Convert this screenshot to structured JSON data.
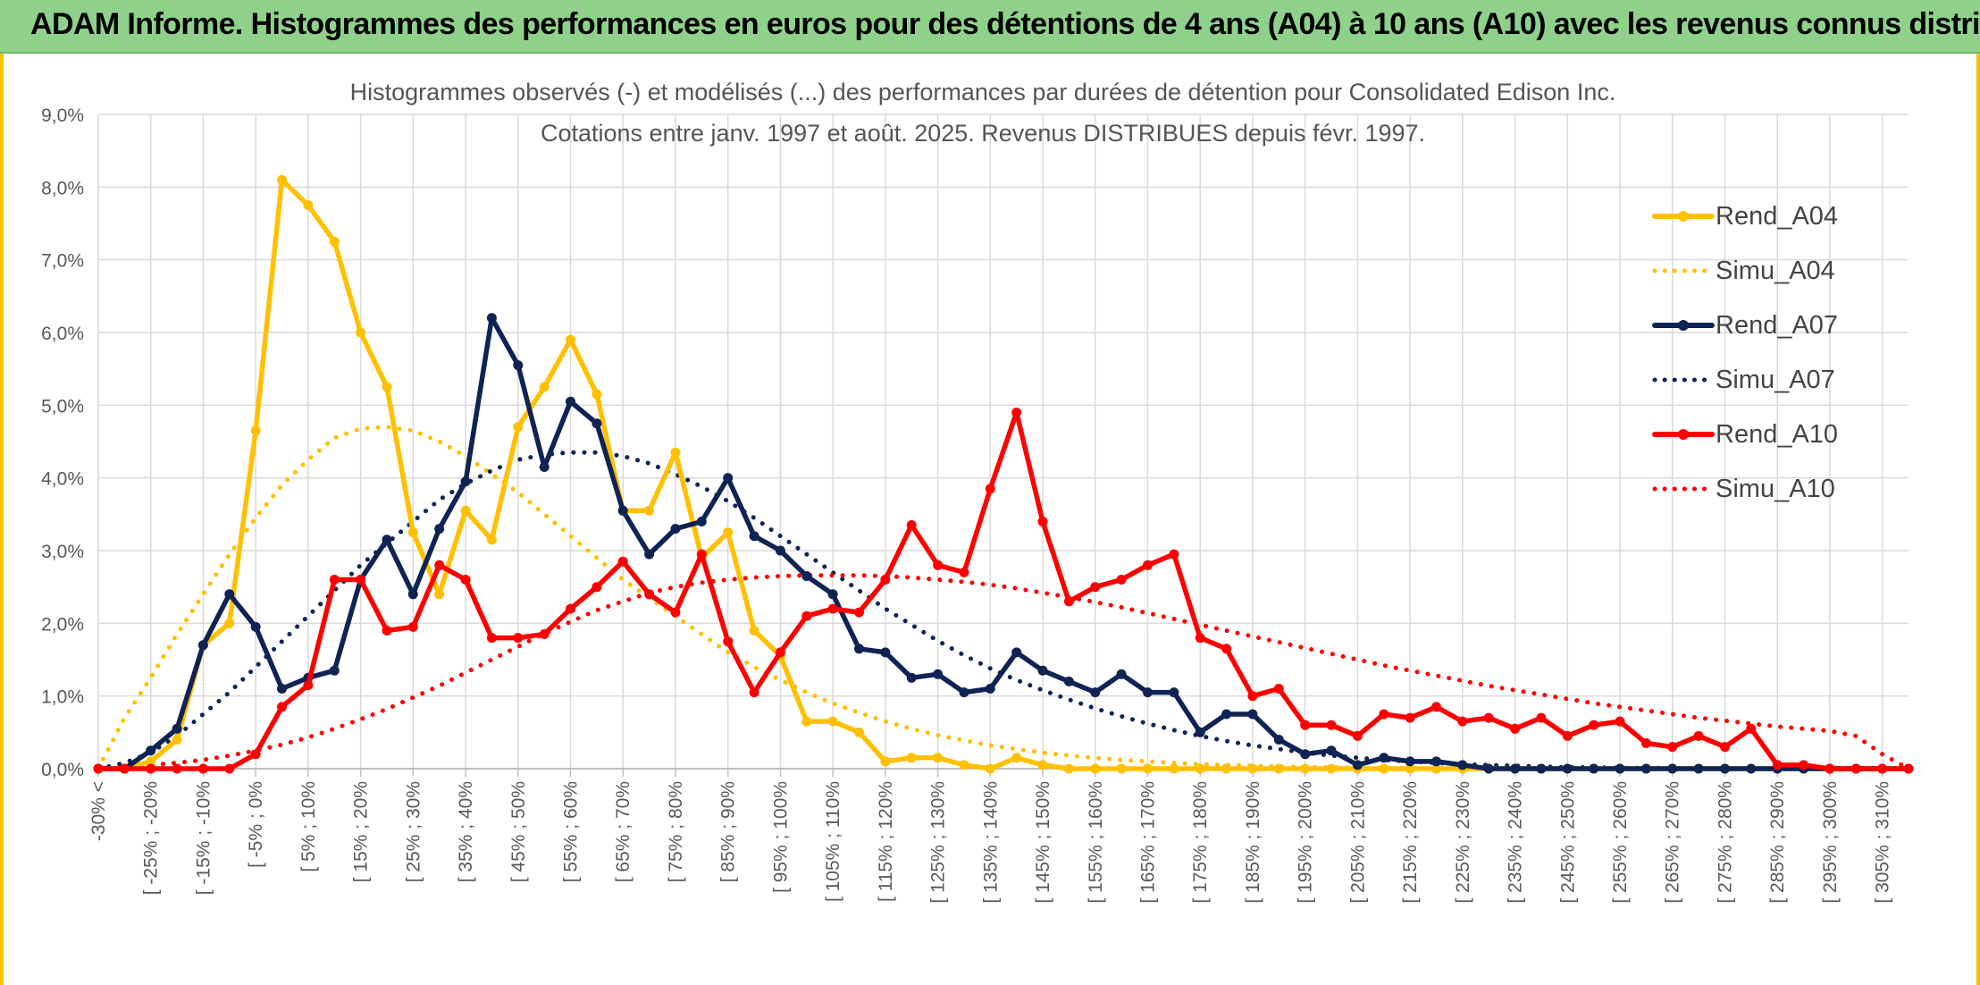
{
  "banner": {
    "title": "ADAM Informe. Histogrammes des performances en euros pour des détentions de 4 ans (A04) à 10 ans (A10) avec les revenus connus distribués"
  },
  "chart_data": {
    "type": "line",
    "title": "Histogrammes observés (-) et modélisés (...) des performances par durées de détention pour Consolidated Edison Inc.",
    "subtitle": "Cotations entre janv. 1997 et août. 2025. Revenus DISTRIBUES depuis févr. 1997.",
    "xlabel": "",
    "ylabel": "",
    "ylim": [
      0,
      9
    ],
    "y_ticks": [
      "0,0%",
      "1,0%",
      "2,0%",
      "3,0%",
      "4,0%",
      "5,0%",
      "6,0%",
      "7,0%",
      "8,0%",
      "9,0%"
    ],
    "grid": true,
    "legend_position": "right",
    "x_tick_labels": [
      "-30% <",
      "[ -25% ; -20%",
      "[ -15% ; -10%",
      "[ -5% ; 0%",
      "[ 5% ; 10%",
      "[ 15% ; 20%",
      "[ 25% ; 30%",
      "[ 35% ; 40%",
      "[ 45% ; 50%",
      "[ 55% ; 60%",
      "[ 65% ; 70%",
      "[ 75% ; 80%",
      "[ 85% ; 90%",
      "[ 95% ; 100%",
      "[ 105% ; 110%",
      "[ 115% ; 120%",
      "[ 125% ; 130%",
      "[ 135% ; 140%",
      "[ 145% ; 150%",
      "[ 155% ; 160%",
      "[ 165% ; 170%",
      "[ 175% ; 180%",
      "[ 185% ; 190%",
      "[ 195% ; 200%",
      "[ 205% ; 210%",
      "[ 215% ; 220%",
      "[ 225% ; 230%",
      "[ 235% ; 240%",
      "[ 245% ; 250%",
      "[ 255% ; 260%",
      "[ 265% ; 270%",
      "[ 275% ; 280%",
      "[ 285% ; 290%",
      "[ 295% ; 300%",
      "[ 305% ; 310%"
    ],
    "series": [
      {
        "name": "Rend_A04",
        "color": "#ffc000",
        "style": "solid",
        "markers": true,
        "values": [
          0.0,
          0.0,
          0.1,
          0.4,
          1.7,
          2.0,
          4.65,
          8.1,
          7.75,
          7.25,
          6.0,
          5.25,
          3.25,
          2.4,
          3.55,
          3.15,
          4.7,
          5.25,
          5.9,
          5.15,
          3.55,
          3.55,
          4.35,
          2.9,
          3.25,
          1.9,
          1.55,
          0.65,
          0.65,
          0.5,
          0.1,
          0.15,
          0.15,
          0.05,
          0.0,
          0.15,
          0.05,
          0.0,
          0.0,
          0.0,
          0.0,
          0.0,
          0.0,
          0.0,
          0.0,
          0.0,
          0.0,
          0.0,
          0.0,
          0.0,
          0.0,
          0.0,
          0.0,
          0.0,
          0.0,
          0.0,
          0.0,
          0.0,
          0.0,
          0.0,
          0.0,
          0.0,
          0.0,
          0.0,
          0.0,
          0.0,
          0.0,
          0.0,
          0.0,
          0.0
        ]
      },
      {
        "name": "Simu_A04",
        "color": "#ffc000",
        "style": "dotted",
        "markers": false,
        "values": [
          0.0,
          0.7,
          1.25,
          1.85,
          2.4,
          2.95,
          3.45,
          3.9,
          4.25,
          4.55,
          4.68,
          4.7,
          4.65,
          4.5,
          4.3,
          4.05,
          3.8,
          3.5,
          3.2,
          2.9,
          2.6,
          2.35,
          2.1,
          1.85,
          1.6,
          1.4,
          1.22,
          1.05,
          0.9,
          0.77,
          0.65,
          0.55,
          0.46,
          0.39,
          0.32,
          0.27,
          0.22,
          0.18,
          0.15,
          0.12,
          0.1,
          0.08,
          0.06,
          0.05,
          0.04,
          0.03,
          0.02,
          0.02,
          0.01,
          0.01,
          0.01,
          0.0,
          0.0,
          0.0,
          0.0,
          0.0,
          0.0,
          0.0,
          0.0,
          0.0,
          0.0,
          0.0,
          0.0,
          0.0,
          0.0,
          0.0,
          0.0,
          0.0,
          0.0,
          0.0
        ]
      },
      {
        "name": "Rend_A07",
        "color": "#0f2454",
        "style": "solid",
        "markers": true,
        "values": [
          0.0,
          0.0,
          0.25,
          0.55,
          1.7,
          2.4,
          1.95,
          1.1,
          1.25,
          1.35,
          2.6,
          3.15,
          2.4,
          3.3,
          3.95,
          6.2,
          5.55,
          4.15,
          5.05,
          4.75,
          3.55,
          2.95,
          3.3,
          3.4,
          4.0,
          3.2,
          3.0,
          2.65,
          2.4,
          1.65,
          1.6,
          1.25,
          1.3,
          1.05,
          1.1,
          1.6,
          1.35,
          1.2,
          1.05,
          1.3,
          1.05,
          1.05,
          0.5,
          0.75,
          0.75,
          0.4,
          0.2,
          0.25,
          0.05,
          0.15,
          0.1,
          0.1,
          0.05,
          0.0,
          0.0,
          0.0,
          0.0,
          0.0,
          0.0,
          0.0,
          0.0,
          0.0,
          0.0,
          0.0,
          0.0,
          0.0,
          0.0,
          0.0,
          0.0,
          0.0
        ]
      },
      {
        "name": "Simu_A07",
        "color": "#0f2454",
        "style": "dotted",
        "markers": false,
        "values": [
          0.0,
          0.08,
          0.22,
          0.45,
          0.75,
          1.05,
          1.4,
          1.75,
          2.1,
          2.45,
          2.8,
          3.1,
          3.4,
          3.7,
          3.92,
          4.1,
          4.25,
          4.32,
          4.35,
          4.35,
          4.3,
          4.2,
          4.05,
          3.88,
          3.68,
          3.45,
          3.2,
          2.95,
          2.7,
          2.45,
          2.2,
          1.98,
          1.76,
          1.56,
          1.38,
          1.22,
          1.08,
          0.95,
          0.83,
          0.72,
          0.62,
          0.53,
          0.45,
          0.38,
          0.32,
          0.27,
          0.22,
          0.18,
          0.15,
          0.12,
          0.1,
          0.08,
          0.06,
          0.05,
          0.04,
          0.03,
          0.02,
          0.02,
          0.01,
          0.01,
          0.01,
          0.0,
          0.0,
          0.0,
          0.0,
          0.0,
          0.0,
          0.0,
          0.0,
          0.0
        ]
      },
      {
        "name": "Rend_A10",
        "color": "#ff0000",
        "style": "solid",
        "markers": true,
        "values": [
          0.0,
          0.0,
          0.0,
          0.0,
          0.0,
          0.0,
          0.2,
          0.85,
          1.15,
          2.6,
          2.6,
          1.9,
          1.95,
          2.8,
          2.6,
          1.8,
          1.8,
          1.85,
          2.2,
          2.5,
          2.85,
          2.4,
          2.15,
          2.95,
          1.75,
          1.05,
          1.6,
          2.1,
          2.2,
          2.15,
          2.6,
          3.35,
          2.8,
          2.7,
          3.85,
          4.9,
          3.4,
          2.3,
          2.5,
          2.6,
          2.8,
          2.95,
          1.8,
          1.65,
          1.0,
          1.1,
          0.6,
          0.6,
          0.45,
          0.75,
          0.7,
          0.85,
          0.65,
          0.7,
          0.55,
          0.7,
          0.45,
          0.6,
          0.65,
          0.35,
          0.3,
          0.45,
          0.3,
          0.55,
          0.05,
          0.05,
          0.0,
          0.0,
          0.0,
          0.0
        ]
      },
      {
        "name": "Simu_A10",
        "color": "#ff0000",
        "style": "dotted",
        "markers": false,
        "values": [
          0.0,
          0.02,
          0.05,
          0.08,
          0.12,
          0.18,
          0.25,
          0.33,
          0.43,
          0.55,
          0.68,
          0.82,
          0.98,
          1.14,
          1.32,
          1.5,
          1.68,
          1.86,
          2.02,
          2.18,
          2.3,
          2.42,
          2.5,
          2.56,
          2.6,
          2.63,
          2.65,
          2.66,
          2.66,
          2.66,
          2.65,
          2.63,
          2.6,
          2.57,
          2.53,
          2.48,
          2.42,
          2.36,
          2.29,
          2.22,
          2.14,
          2.06,
          1.98,
          1.9,
          1.82,
          1.74,
          1.66,
          1.58,
          1.5,
          1.42,
          1.35,
          1.28,
          1.21,
          1.14,
          1.08,
          1.02,
          0.96,
          0.9,
          0.85,
          0.8,
          0.75,
          0.7,
          0.66,
          0.62,
          0.58,
          0.55,
          0.52,
          0.45,
          0.2,
          0.0
        ]
      }
    ]
  }
}
